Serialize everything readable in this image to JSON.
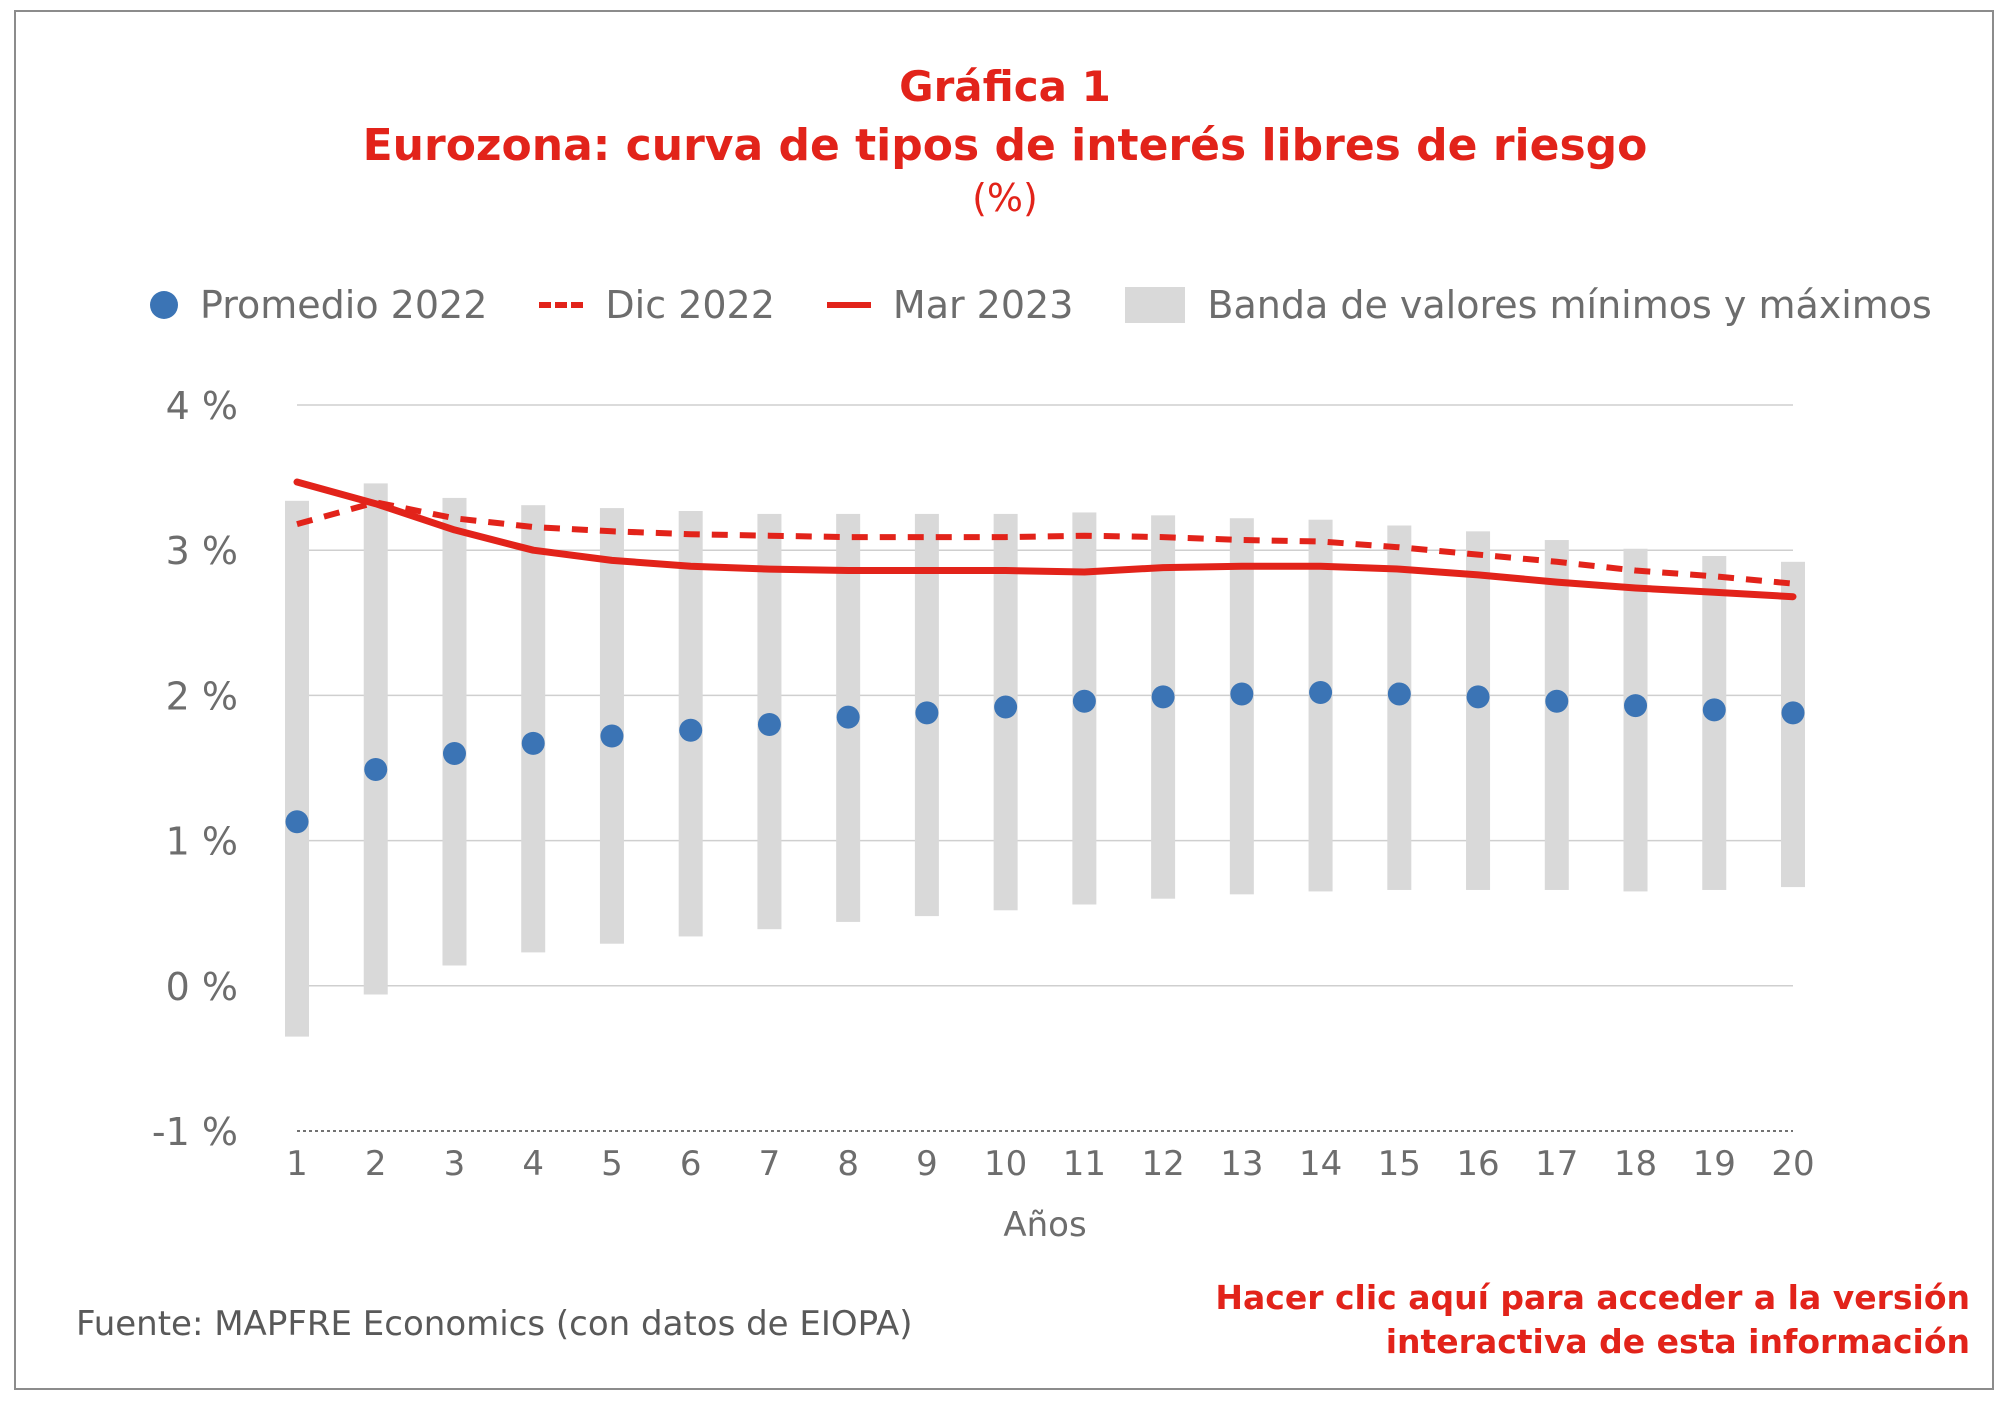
{
  "header": {
    "line1": "Gráfica 1",
    "line2": "Eurozona: curva de tipos de interés libres de riesgo",
    "line3": "(%)"
  },
  "legend": {
    "promedio": "Promedio 2022",
    "dic": "Dic 2022",
    "mar": "Mar 2023",
    "banda": "Banda de valores mínimos y máximos"
  },
  "footer": {
    "source": "Fuente: MAPFRE Economics (con datos de EIOPA)",
    "link_line1": "Hacer clic aquí para acceder a la versión",
    "link_line2": "interactiva de esta información"
  },
  "colors": {
    "red": "#e2231a",
    "blue": "#3b74b5",
    "band": "#d9d9d9",
    "grid": "#cfcfcf"
  },
  "chart_data": {
    "type": "line",
    "xlabel": "Años",
    "ylim": [
      -1,
      4
    ],
    "y_ticks": [
      4,
      3,
      2,
      1,
      0,
      -1
    ],
    "y_tick_labels": [
      "4 %",
      "3 %",
      "2 %",
      "1 %",
      "0 %",
      "-1 %"
    ],
    "x": [
      1,
      2,
      3,
      4,
      5,
      6,
      7,
      8,
      9,
      10,
      11,
      12,
      13,
      14,
      15,
      16,
      17,
      18,
      19,
      20
    ],
    "x_tick_labels": [
      "1",
      "2",
      "3",
      "4",
      "5",
      "6",
      "7",
      "8",
      "9",
      "10",
      "11",
      "12",
      "13",
      "14",
      "15",
      "16",
      "17",
      "18",
      "19",
      "20"
    ],
    "band": {
      "name": "Banda de valores mínimos y máximos",
      "min": [
        -0.35,
        -0.06,
        0.14,
        0.23,
        0.29,
        0.34,
        0.39,
        0.44,
        0.48,
        0.52,
        0.56,
        0.6,
        0.63,
        0.65,
        0.66,
        0.66,
        0.66,
        0.65,
        0.66,
        0.68
      ],
      "max": [
        3.34,
        3.46,
        3.36,
        3.31,
        3.29,
        3.27,
        3.25,
        3.25,
        3.25,
        3.25,
        3.26,
        3.24,
        3.22,
        3.21,
        3.17,
        3.13,
        3.07,
        3.01,
        2.96,
        2.92
      ]
    },
    "series": [
      {
        "name": "Promedio 2022",
        "style": "dot",
        "values": [
          1.13,
          1.49,
          1.6,
          1.67,
          1.72,
          1.76,
          1.8,
          1.85,
          1.88,
          1.92,
          1.96,
          1.99,
          2.01,
          2.02,
          2.01,
          1.99,
          1.96,
          1.93,
          1.9,
          1.88
        ]
      },
      {
        "name": "Dic 2022",
        "style": "dashed",
        "values": [
          3.18,
          3.33,
          3.22,
          3.16,
          3.13,
          3.11,
          3.1,
          3.09,
          3.09,
          3.09,
          3.1,
          3.09,
          3.07,
          3.06,
          3.02,
          2.97,
          2.92,
          2.86,
          2.82,
          2.77
        ]
      },
      {
        "name": "Mar 2023",
        "style": "solid",
        "values": [
          3.47,
          3.32,
          3.14,
          3.0,
          2.93,
          2.89,
          2.87,
          2.86,
          2.86,
          2.86,
          2.85,
          2.88,
          2.89,
          2.89,
          2.87,
          2.83,
          2.78,
          2.74,
          2.71,
          2.68
        ]
      }
    ]
  }
}
